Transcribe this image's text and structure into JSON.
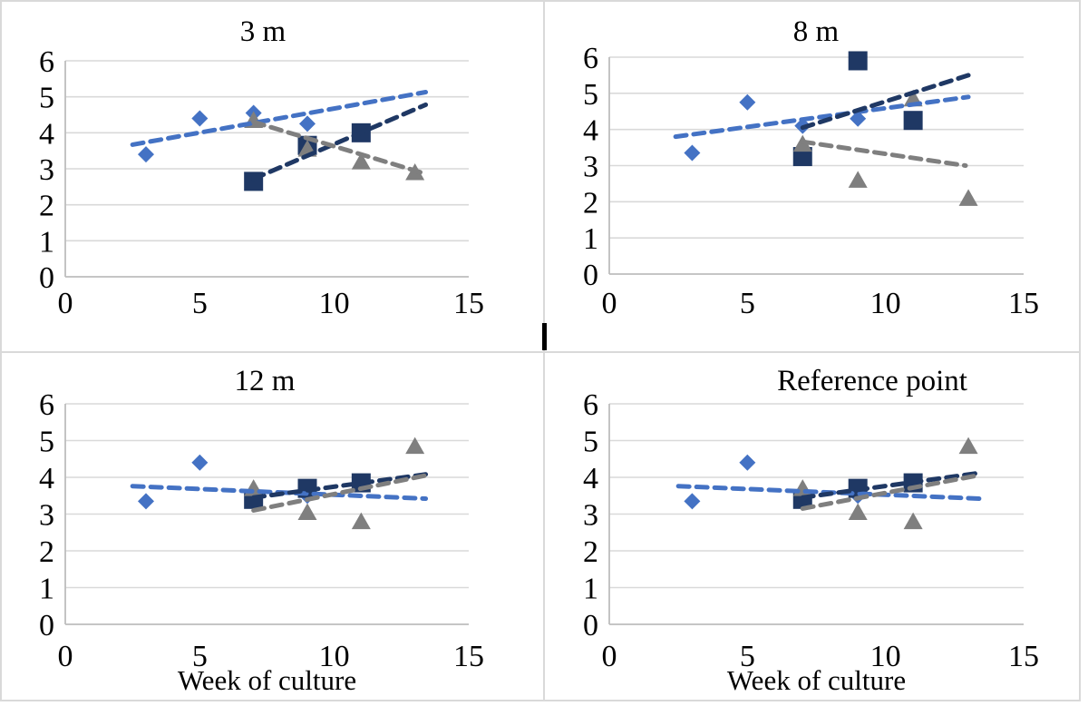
{
  "figure": {
    "background": "#ffffff",
    "border_color": "#d9d9d9",
    "divider_color": "#d9d9d9",
    "text_color": "#000000",
    "gridline_color": "#d9d9d9",
    "axis_line_color": "#bdbdbd",
    "has_cursor_artifact": true
  },
  "colors": {
    "blue": "#4472C4",
    "navy": "#1F3864",
    "gray": "#7F7F7F"
  },
  "chart_data": [
    {
      "type": "scatter",
      "title": "3 m",
      "xlabel": "",
      "ylabel": "",
      "xlim": [
        0,
        15
      ],
      "ylim": [
        0,
        6
      ],
      "xticks": [
        0,
        5,
        10,
        15
      ],
      "yticks": [
        0,
        1,
        2,
        3,
        4,
        5,
        6
      ],
      "grid": "horizontal",
      "legend": "none",
      "series": [
        {
          "name": "blue-diamond",
          "marker": "diamond",
          "color": "#4472C4",
          "points": [
            [
              3,
              3.4
            ],
            [
              5,
              4.4
            ],
            [
              7,
              4.55
            ],
            [
              9,
              4.25
            ]
          ],
          "trendline": {
            "style": "dashed",
            "start": [
              2.5,
              3.67
            ],
            "end": [
              13.4,
              5.13
            ]
          }
        },
        {
          "name": "navy-square",
          "marker": "square",
          "color": "#1F3864",
          "points": [
            [
              7,
              2.65
            ],
            [
              9,
              3.65
            ],
            [
              11,
              4.0
            ]
          ],
          "trendline": {
            "style": "dashed",
            "start": [
              7,
              2.72
            ],
            "end": [
              13.4,
              4.78
            ]
          }
        },
        {
          "name": "gray-triangle",
          "marker": "triangle",
          "color": "#7F7F7F",
          "points": [
            [
              7,
              4.35
            ],
            [
              9,
              3.55
            ],
            [
              11,
              3.2
            ],
            [
              13,
              2.9
            ]
          ],
          "trendline": {
            "style": "dashed",
            "start": [
              7,
              4.3
            ],
            "end": [
              13.4,
              2.86
            ]
          }
        }
      ]
    },
    {
      "type": "scatter",
      "title": "8 m",
      "xlabel": "",
      "ylabel": "",
      "xlim": [
        0,
        15
      ],
      "ylim": [
        0,
        6
      ],
      "xticks": [
        0,
        5,
        10,
        15
      ],
      "yticks": [
        0,
        1,
        2,
        3,
        4,
        5,
        6
      ],
      "grid": "horizontal",
      "legend": "none",
      "series": [
        {
          "name": "blue-diamond",
          "marker": "diamond",
          "color": "#4472C4",
          "points": [
            [
              3,
              3.35
            ],
            [
              5,
              4.75
            ],
            [
              7,
              4.1
            ],
            [
              9,
              4.3
            ]
          ],
          "trendline": {
            "style": "dashed",
            "start": [
              2.4,
              3.8
            ],
            "end": [
              13,
              4.9
            ]
          }
        },
        {
          "name": "navy-square",
          "marker": "square",
          "color": "#1F3864",
          "points": [
            [
              7,
              3.25
            ],
            [
              9,
              5.9
            ],
            [
              11,
              4.25
            ]
          ],
          "trendline": {
            "style": "dashed",
            "start": [
              7,
              4.05
            ],
            "end": [
              13,
              5.5
            ]
          }
        },
        {
          "name": "gray-triangle",
          "marker": "triangle",
          "color": "#7F7F7F",
          "points": [
            [
              7,
              3.6
            ],
            [
              9,
              2.6
            ],
            [
              11,
              4.85
            ],
            [
              13,
              2.1
            ]
          ],
          "trendline": {
            "style": "dashed",
            "start": [
              7,
              3.66
            ],
            "end": [
              12.9,
              3.0
            ]
          }
        }
      ]
    },
    {
      "type": "scatter",
      "title": "12 m",
      "xlabel": "Week of culture",
      "ylabel": "",
      "xlim": [
        0,
        15
      ],
      "ylim": [
        0,
        6
      ],
      "xticks": [
        0,
        5,
        10,
        15
      ],
      "yticks": [
        0,
        1,
        2,
        3,
        4,
        5,
        6
      ],
      "grid": "horizontal",
      "legend": "none",
      "series": [
        {
          "name": "blue-diamond",
          "marker": "diamond",
          "color": "#4472C4",
          "points": [
            [
              3,
              3.35
            ],
            [
              5,
              4.4
            ],
            [
              7,
              3.55
            ],
            [
              9,
              3.5
            ]
          ],
          "trendline": {
            "style": "dashed",
            "start": [
              2.5,
              3.76
            ],
            "end": [
              13.4,
              3.42
            ]
          }
        },
        {
          "name": "navy-square",
          "marker": "square",
          "color": "#1F3864",
          "points": [
            [
              7,
              3.4
            ],
            [
              9,
              3.7
            ],
            [
              11,
              3.85
            ]
          ],
          "trendline": {
            "style": "dashed",
            "start": [
              7,
              3.45
            ],
            "end": [
              13.4,
              4.08
            ]
          }
        },
        {
          "name": "gray-triangle",
          "marker": "triangle",
          "color": "#7F7F7F",
          "points": [
            [
              7,
              3.7
            ],
            [
              9,
              3.05
            ],
            [
              11,
              2.8
            ],
            [
              13,
              4.85
            ]
          ],
          "trendline": {
            "style": "dashed",
            "start": [
              7,
              3.1
            ],
            "end": [
              13.4,
              4.05
            ]
          }
        }
      ]
    },
    {
      "type": "scatter",
      "title": "Reference point",
      "xlabel": "Week of culture",
      "ylabel": "",
      "xlim": [
        0,
        15
      ],
      "ylim": [
        0,
        6
      ],
      "xticks": [
        0,
        5,
        10,
        15
      ],
      "yticks": [
        0,
        1,
        2,
        3,
        4,
        5,
        6
      ],
      "grid": "horizontal",
      "legend": "none",
      "series": [
        {
          "name": "blue-diamond",
          "marker": "diamond",
          "color": "#4472C4",
          "points": [
            [
              3,
              3.35
            ],
            [
              5,
              4.4
            ],
            [
              7,
              3.55
            ],
            [
              9,
              3.5
            ]
          ],
          "trendline": {
            "style": "dashed",
            "start": [
              2.5,
              3.76
            ],
            "end": [
              13.4,
              3.42
            ]
          }
        },
        {
          "name": "navy-square",
          "marker": "square",
          "color": "#1F3864",
          "points": [
            [
              7,
              3.4
            ],
            [
              9,
              3.7
            ],
            [
              11,
              3.85
            ]
          ],
          "trendline": {
            "style": "dashed",
            "start": [
              7,
              3.45
            ],
            "end": [
              13.4,
              4.12
            ]
          }
        },
        {
          "name": "gray-triangle",
          "marker": "triangle",
          "color": "#7F7F7F",
          "points": [
            [
              7,
              3.7
            ],
            [
              9,
              3.05
            ],
            [
              11,
              2.8
            ],
            [
              13,
              4.85
            ]
          ],
          "trendline": {
            "style": "dashed",
            "start": [
              7,
              3.15
            ],
            "end": [
              13.4,
              4.06
            ]
          }
        }
      ]
    }
  ]
}
